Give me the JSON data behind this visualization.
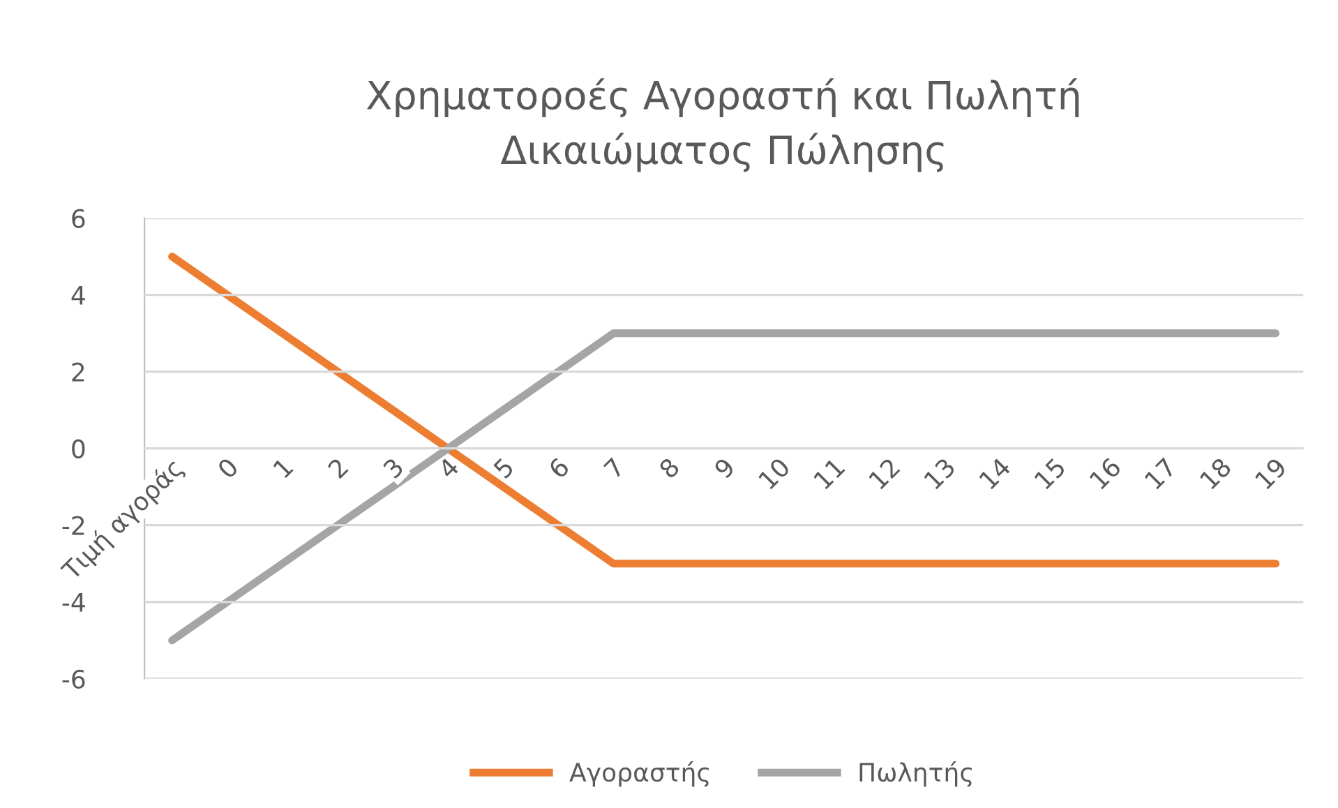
{
  "chart_data": {
    "type": "line",
    "title": "Χρηματοροές Αγοραστή και Πωλητή\nΔικαιώματος Πώλησης",
    "categories": [
      "Τιμή αγοράς",
      "0",
      "1",
      "2",
      "3",
      "4",
      "5",
      "6",
      "7",
      "8",
      "9",
      "10",
      "11",
      "12",
      "13",
      "14",
      "15",
      "16",
      "17",
      "18",
      "19"
    ],
    "series": [
      {
        "name": "Αγοραστής",
        "color": "#ed7d31",
        "values": [
          5,
          4,
          3,
          2,
          1,
          0,
          -1,
          -2,
          -3,
          -3,
          -3,
          -3,
          -3,
          -3,
          -3,
          -3,
          -3,
          -3,
          -3,
          -3,
          -3
        ]
      },
      {
        "name": "Πωλητής",
        "color": "#a5a5a5",
        "values": [
          -5,
          -4,
          -3,
          -2,
          -1,
          0,
          1,
          2,
          3,
          3,
          3,
          3,
          3,
          3,
          3,
          3,
          3,
          3,
          3,
          3,
          3
        ]
      }
    ],
    "ylim": [
      -6,
      6
    ],
    "yticks": [
      -6,
      -4,
      -2,
      0,
      2,
      4,
      6
    ],
    "grid": "y",
    "legend": "bottom",
    "marker": "none",
    "line_style": "solid"
  }
}
